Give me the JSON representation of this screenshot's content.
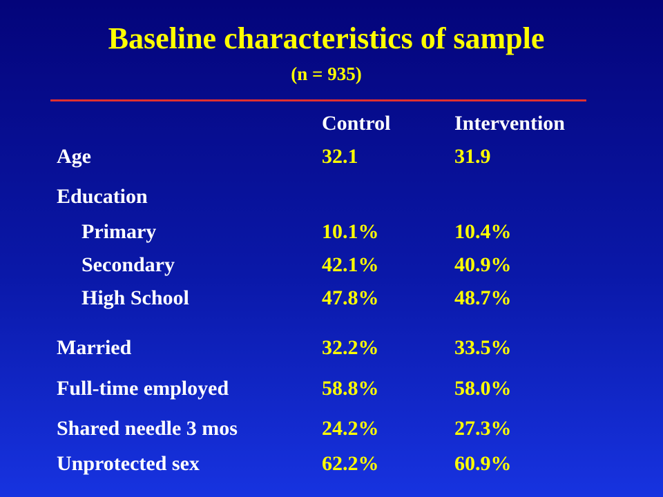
{
  "title": "Baseline characteristics of sample",
  "subtitle": "(n = 935)",
  "columns": {
    "control": "Control",
    "intervention": "Intervention"
  },
  "rows": [
    {
      "label": "Age",
      "control": "32.1",
      "intervention": "31.9"
    },
    {
      "label": "Education",
      "control": "",
      "intervention": ""
    },
    {
      "label": "Primary",
      "control": "10.1%",
      "intervention": "10.4%"
    },
    {
      "label": "Secondary",
      "control": "42.1%",
      "intervention": "40.9%"
    },
    {
      "label": "High School",
      "control": "47.8%",
      "intervention": "48.7%"
    },
    {
      "label": "Married",
      "control": "32.2%",
      "intervention": "33.5%"
    },
    {
      "label": "Full-time employed",
      "control": "58.8%",
      "intervention": "58.0%"
    },
    {
      "label": "Shared needle 3 mos",
      "control": "24.2%",
      "intervention": "27.3%"
    },
    {
      "label": "Unprotected sex",
      "control": "62.2%",
      "intervention": "60.9%"
    }
  ],
  "colors": {
    "title": "#ffff00",
    "values": "#ffff00",
    "labels": "#ffffff",
    "rule": "#e03030"
  }
}
